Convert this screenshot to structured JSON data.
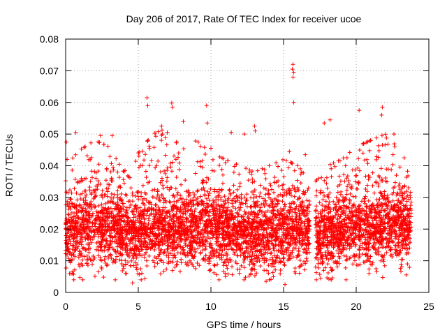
{
  "chart_data": {
    "type": "scatter",
    "title": "Day 206 of 2017, Rate Of TEC Index for receiver ucoe",
    "xlabel": "GPS time / hours",
    "ylabel": "ROTI / TECUs",
    "xlim": [
      0,
      25
    ],
    "ylim": [
      0,
      0.08
    ],
    "x_ticks": [
      "0",
      "5",
      "10",
      "15",
      "20",
      "25"
    ],
    "y_ticks": [
      "0",
      "0.01",
      "0.02",
      "0.03",
      "0.04",
      "0.05",
      "0.06",
      "0.07",
      "0.08"
    ],
    "grid": true,
    "marker": "+",
    "colors": {
      "series": "#ff0000",
      "grid": "#a0a0a0",
      "axis": "#000000"
    },
    "data_gap_hours": [
      16.8,
      17.2
    ],
    "density_profile": {
      "x": [
        0,
        1,
        2,
        3,
        4,
        5,
        6,
        7,
        8,
        9,
        10,
        11,
        12,
        13,
        14,
        15,
        16,
        16.8,
        17.2,
        18,
        19,
        20,
        21,
        22,
        23,
        23.8
      ],
      "median_roti": [
        0.018,
        0.019,
        0.02,
        0.02,
        0.018,
        0.018,
        0.02,
        0.02,
        0.019,
        0.02,
        0.019,
        0.019,
        0.018,
        0.017,
        0.018,
        0.019,
        0.019,
        0.019,
        0.018,
        0.018,
        0.019,
        0.02,
        0.02,
        0.021,
        0.02,
        0.02
      ],
      "typical_max": [
        0.04,
        0.045,
        0.048,
        0.046,
        0.038,
        0.044,
        0.05,
        0.052,
        0.045,
        0.048,
        0.044,
        0.042,
        0.04,
        0.038,
        0.04,
        0.042,
        0.04,
        0.035,
        0.035,
        0.04,
        0.042,
        0.046,
        0.048,
        0.05,
        0.045,
        0.035
      ]
    },
    "outliers": [
      {
        "x": 15.65,
        "y": 0.072
      },
      {
        "x": 15.6,
        "y": 0.0705
      },
      {
        "x": 15.7,
        "y": 0.0695
      },
      {
        "x": 15.65,
        "y": 0.068
      },
      {
        "x": 15.7,
        "y": 0.06
      },
      {
        "x": 5.6,
        "y": 0.0615
      },
      {
        "x": 5.65,
        "y": 0.059
      },
      {
        "x": 7.3,
        "y": 0.0598
      },
      {
        "x": 7.35,
        "y": 0.0585
      },
      {
        "x": 9.7,
        "y": 0.059
      },
      {
        "x": 20.2,
        "y": 0.0575
      },
      {
        "x": 21.8,
        "y": 0.0585
      },
      {
        "x": 21.75,
        "y": 0.056
      },
      {
        "x": 17.8,
        "y": 0.0535
      },
      {
        "x": 18.2,
        "y": 0.0545
      },
      {
        "x": 8.1,
        "y": 0.054
      },
      {
        "x": 9.75,
        "y": 0.0535
      },
      {
        "x": 0.7,
        "y": 0.0505
      },
      {
        "x": 2.4,
        "y": 0.0495
      },
      {
        "x": 3.2,
        "y": 0.0495
      },
      {
        "x": 6.6,
        "y": 0.0525
      },
      {
        "x": 11.4,
        "y": 0.0505
      },
      {
        "x": 12.3,
        "y": 0.05
      },
      {
        "x": 13.0,
        "y": 0.0525
      },
      {
        "x": 13.05,
        "y": 0.051
      },
      {
        "x": 22.6,
        "y": 0.05
      },
      {
        "x": 15.4,
        "y": 0.0445
      },
      {
        "x": 16.5,
        "y": 0.0435
      },
      {
        "x": 0.05,
        "y": 0.0475
      },
      {
        "x": 0.1,
        "y": 0.042
      },
      {
        "x": 4.6,
        "y": 0.003
      },
      {
        "x": 13.8,
        "y": 0.0035
      },
      {
        "x": 14.3,
        "y": 0.005
      },
      {
        "x": 5.2,
        "y": 0.004
      },
      {
        "x": 11.0,
        "y": 0.005
      },
      {
        "x": 19.3,
        "y": 0.004
      },
      {
        "x": 15.1,
        "y": 0.0025
      },
      {
        "x": 23.3,
        "y": 0.0425
      },
      {
        "x": 7.0,
        "y": 0.0505
      },
      {
        "x": 10.0,
        "y": 0.0455
      }
    ]
  }
}
